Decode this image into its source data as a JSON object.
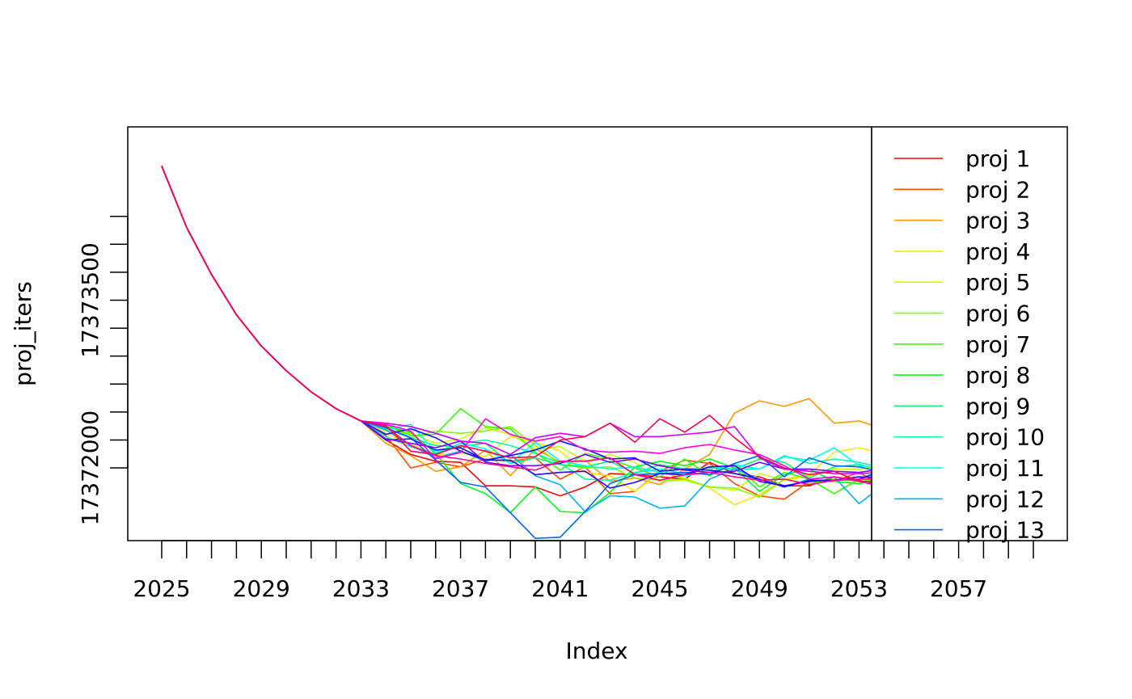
{
  "chart_data": {
    "type": "line",
    "title": "",
    "xlabel": "Index",
    "ylabel": "proj_iters",
    "x_ticks": [
      "2025",
      "2029",
      "2033",
      "2037",
      "2041",
      "2045",
      "2049",
      "2053",
      "2057"
    ],
    "y_ticks": [
      "17372000",
      "17373500"
    ],
    "x_range": [
      2025,
      2060
    ],
    "ylim": [
      17371350,
      17375050
    ],
    "grid": false,
    "legend_position": "right",
    "colors": [
      "#FF0000",
      "#FF4D00",
      "#FF9900",
      "#FFE500",
      "#CCFF00",
      "#80FF00",
      "#33FF00",
      "#00FF19",
      "#00FF66",
      "#00FFB2",
      "#00FFFF",
      "#00B3FF",
      "#0066FF"
    ],
    "extra_colors": [
      "#001AFF",
      "#3300FF",
      "#7F00FF",
      "#CC00FF",
      "#FF00E6",
      "#FF0099",
      "#FF004D"
    ],
    "series": [
      {
        "name": "proj 1",
        "color": "#FF0000",
        "values": [
          17374700,
          17374150,
          17373730,
          17373370,
          17373090,
          17372870,
          17372680,
          17372530,
          17372420,
          17372250,
          17372120,
          17372060,
          17372050,
          17371840,
          17371840,
          17371830,
          17371750,
          17371830,
          17371950,
          17371940,
          17371920,
          17371900,
          17372050,
          17371950,
          17371920,
          17371840,
          17371840,
          17371920,
          17371890,
          17371840
        ]
      },
      {
        "name": "proj 2",
        "color": "#FF4D00",
        "values": [
          17374700,
          17374150,
          17373730,
          17373370,
          17373090,
          17372870,
          17372680,
          17372530,
          17372420,
          17372290,
          17372000,
          17372050,
          17372010,
          17372080,
          17372060,
          17372090,
          17371900,
          17372010,
          17371770,
          17371790,
          17371970,
          17372070,
          17372040,
          17371860,
          17371750,
          17371720,
          17371880,
          17371880,
          17371960,
          17371830
        ]
      },
      {
        "name": "proj 3",
        "color": "#FF9900",
        "values": [
          17374700,
          17374150,
          17373730,
          17373370,
          17373090,
          17372870,
          17372680,
          17372530,
          17372420,
          17372220,
          17372110,
          17371970,
          17372010,
          17372160,
          17371930,
          17372170,
          17372050,
          17372070,
          17371880,
          17371910,
          17371850,
          17371990,
          17372120,
          17372490,
          17372600,
          17372550,
          17372620,
          17372400,
          17372420,
          17372350
        ]
      },
      {
        "name": "proj 4",
        "color": "#FFE500",
        "values": [
          17374700,
          17374150,
          17373730,
          17373370,
          17373090,
          17372870,
          17372680,
          17372530,
          17372420,
          17372310,
          17372210,
          17372120,
          17372130,
          17372100,
          17372280,
          17372230,
          17372150,
          17371960,
          17371930,
          17371790,
          17371960,
          17371910,
          17371820,
          17371670,
          17371760,
          17371900,
          17371940,
          17372140,
          17372180,
          17372130
        ]
      },
      {
        "name": "proj 5",
        "color": "#CCFF00",
        "values": [
          17374700,
          17374150,
          17373730,
          17373370,
          17373090,
          17372870,
          17372680,
          17372530,
          17372420,
          17372330,
          17372310,
          17372220,
          17372260,
          17372360,
          17372300,
          17372170,
          17372190,
          17372060,
          17372120,
          17372050,
          17371880,
          17371890,
          17371830,
          17371800,
          17371950,
          17371890,
          17371930,
          17371990,
          17371990,
          17372020
        ]
      },
      {
        "name": "proj 6",
        "color": "#80FF00",
        "values": [
          17374700,
          17374150,
          17373730,
          17373370,
          17373090,
          17372870,
          17372680,
          17372530,
          17372420,
          17372390,
          17372270,
          17372330,
          17372310,
          17372330,
          17372370,
          17372200,
          17372030,
          17372000,
          17372010,
          17371910,
          17371890,
          17371900,
          17371830,
          17371820,
          17371740,
          17371900,
          17371860,
          17371900,
          17371880,
          17371900
        ]
      },
      {
        "name": "proj 7",
        "color": "#33FF00",
        "values": [
          17374700,
          17374150,
          17373730,
          17373370,
          17373090,
          17372870,
          17372680,
          17372530,
          17372420,
          17372390,
          17372290,
          17372300,
          17372530,
          17372370,
          17372350,
          17372140,
          17371980,
          17372130,
          17372080,
          17372000,
          17371920,
          17372080,
          17371930,
          17372040,
          17371830,
          17371960,
          17371900,
          17371770,
          17371900,
          17371950
        ]
      },
      {
        "name": "proj 8",
        "color": "#00FF19",
        "values": [
          17374700,
          17374150,
          17373730,
          17373370,
          17373090,
          17372870,
          17372680,
          17372530,
          17372420,
          17372370,
          17372320,
          17372130,
          17371860,
          17371770,
          17371600,
          17371830,
          17371610,
          17371600,
          17371780,
          17372010,
          17372060,
          17372020,
          17372080,
          17372000,
          17371790,
          17371940,
          17371990,
          17371880,
          17371860,
          17371900
        ]
      },
      {
        "name": "proj 9",
        "color": "#00FF66",
        "values": [
          17374700,
          17374150,
          17373730,
          17373370,
          17373090,
          17372870,
          17372680,
          17372530,
          17372420,
          17372350,
          17372270,
          17372200,
          17372190,
          17372220,
          17372040,
          17372090,
          17372030,
          17372010,
          17372060,
          17371950,
          17372030,
          17371990,
          17372000,
          17371990,
          17372080,
          17372050,
          17371910,
          17372010,
          17372030,
          17371980
        ]
      },
      {
        "name": "proj 10",
        "color": "#00FFB2",
        "values": [
          17374700,
          17374150,
          17373730,
          17373370,
          17373090,
          17372870,
          17372680,
          17372530,
          17372420,
          17372280,
          17372190,
          17372130,
          17372220,
          17372250,
          17372200,
          17372130,
          17372040,
          17371900,
          17371890,
          17371960,
          17371990,
          17371950,
          17372010,
          17371990,
          17371990,
          17372110,
          17372040,
          17372080,
          17372050,
          17372000
        ]
      },
      {
        "name": "proj 11",
        "color": "#00FFFF",
        "values": [
          17374700,
          17374150,
          17373730,
          17373370,
          17373090,
          17372870,
          17372680,
          17372530,
          17372420,
          17372340,
          17372390,
          17372140,
          17372220,
          17372170,
          17372040,
          17372230,
          17372060,
          17372020,
          17371990,
          17372010,
          17371960,
          17371930,
          17371960,
          17372030,
          17371990,
          17372100,
          17372070,
          17372180,
          17372020,
          17372000
        ]
      },
      {
        "name": "proj 12",
        "color": "#00B3FF",
        "values": [
          17374700,
          17374150,
          17373730,
          17373370,
          17373090,
          17372870,
          17372680,
          17372530,
          17372420,
          17372340,
          17372200,
          17372090,
          17372150,
          17372060,
          17372120,
          17371930,
          17371850,
          17371610,
          17371750,
          17371740,
          17371640,
          17371660,
          17371900,
          17371990,
          17371900,
          17371830,
          17371900,
          17371920,
          17371680,
          17371850
        ]
      },
      {
        "name": "proj 13",
        "color": "#0066FF",
        "values": [
          17374700,
          17374150,
          17373730,
          17373370,
          17373090,
          17372870,
          17372680,
          17372530,
          17372420,
          17372360,
          17372270,
          17372070,
          17371870,
          17371830,
          17371600,
          17371370,
          17371380,
          17371610,
          17371860,
          17371940,
          17371950,
          17371960,
          17371940,
          17372040,
          17372110,
          17371920,
          17372090,
          17372020,
          17372010,
          17371960
        ]
      },
      {
        "values": [
          17374700,
          17374150,
          17373730,
          17373370,
          17373090,
          17372870,
          17372680,
          17372530,
          17372420,
          17372250,
          17372260,
          17372160,
          17372180,
          17372070,
          17372110,
          17372160,
          17372240,
          17372170,
          17372080,
          17372090,
          17371970,
          17371990,
          17371980,
          17371950,
          17371900,
          17371830,
          17371890,
          17371890,
          17371900,
          17371980
        ]
      },
      {
        "values": [
          17374700,
          17374150,
          17373730,
          17373370,
          17373090,
          17372870,
          17372680,
          17372530,
          17372420,
          17372300,
          17372350,
          17372270,
          17372150,
          17372070,
          17372070,
          17371940,
          17371960,
          17371970,
          17371820,
          17371870,
          17371950,
          17371940,
          17372010,
          17372020,
          17371880,
          17371840,
          17371880,
          17371890,
          17371920,
          17371910
        ]
      },
      {
        "values": [
          17374700,
          17374150,
          17373730,
          17373370,
          17373090,
          17372870,
          17372680,
          17372530,
          17372420,
          17372260,
          17372220,
          17372180,
          17372240,
          17372050,
          17372020,
          17372020,
          17372040,
          17372120,
          17372050,
          17372080,
          17372020,
          17371980,
          17371960,
          17371970,
          17372050,
          17371990,
          17371990,
          17371970,
          17371960,
          17371990
        ]
      },
      {
        "values": [
          17374700,
          17374150,
          17373730,
          17373370,
          17373090,
          17372870,
          17372680,
          17372530,
          17372420,
          17372400,
          17372370,
          17372310,
          17372240,
          17372220,
          17372120,
          17372270,
          17372310,
          17372280,
          17372400,
          17372280,
          17372280,
          17372300,
          17372320,
          17372370,
          17372090,
          17371990,
          17371970,
          17371950,
          17371950,
          17371960
        ]
      },
      {
        "values": [
          17374700,
          17374150,
          17373730,
          17373370,
          17373090,
          17372870,
          17372680,
          17372530,
          17372420,
          17372390,
          17372330,
          17372080,
          17372140,
          17372440,
          17372300,
          17372240,
          17372280,
          17372160,
          17372140,
          17372150,
          17372130,
          17372180,
          17372210,
          17372160,
          17372120,
          17372020,
          17371900,
          17371920,
          17371880,
          17371830
        ]
      },
      {
        "values": [
          17374700,
          17374150,
          17373730,
          17373370,
          17373090,
          17372870,
          17372680,
          17372530,
          17372420,
          17372370,
          17372200,
          17372110,
          17372080,
          17372040,
          17372010,
          17371980,
          17372060,
          17372060,
          17372090,
          17371940,
          17371890,
          17371940,
          17371960,
          17371920,
          17371890,
          17371900,
          17371850,
          17371890,
          17371900,
          17371900
        ]
      },
      {
        "values": [
          17374700,
          17374150,
          17373730,
          17373370,
          17373090,
          17372870,
          17372680,
          17372530,
          17372420,
          17372380,
          17372150,
          17372120,
          17372200,
          17372150,
          17372090,
          17372100,
          17372250,
          17372280,
          17372400,
          17372230,
          17372440,
          17372320,
          17372470,
          17372270,
          17372100,
          17372000,
          17371940,
          17371970,
          17371880,
          17371880
        ]
      }
    ]
  }
}
